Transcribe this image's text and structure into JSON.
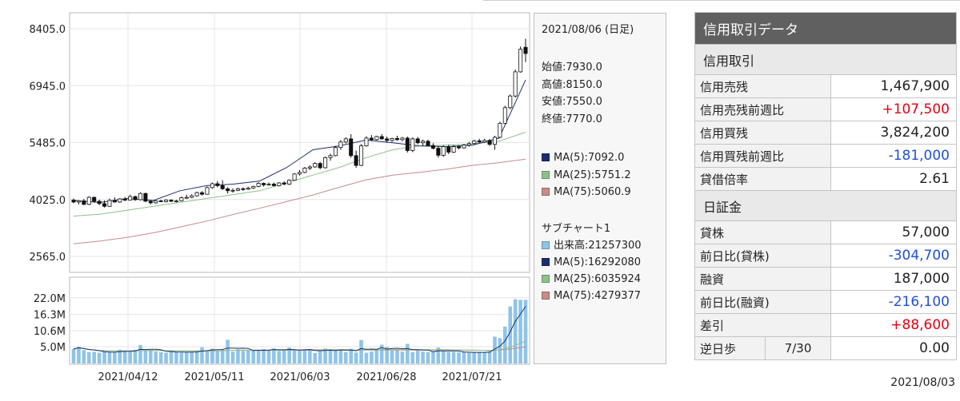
{
  "chart_data": {
    "type": "candlestick",
    "price_panel": {
      "y_ticks": [
        "8405.0",
        "6945.0",
        "5485.0",
        "4025.0",
        "2565.0"
      ],
      "ylim": [
        2565.0,
        8405.0
      ],
      "candles": [
        {
          "o": 4010,
          "h": 4050,
          "l": 3930,
          "c": 3960
        },
        {
          "o": 3960,
          "h": 4010,
          "l": 3900,
          "c": 3990
        },
        {
          "o": 3990,
          "h": 4040,
          "l": 3880,
          "c": 3900
        },
        {
          "o": 3900,
          "h": 4110,
          "l": 3880,
          "c": 4080
        },
        {
          "o": 4080,
          "h": 4100,
          "l": 3940,
          "c": 3980
        },
        {
          "o": 3980,
          "h": 4020,
          "l": 3880,
          "c": 3920
        },
        {
          "o": 3920,
          "h": 4000,
          "l": 3820,
          "c": 3850
        },
        {
          "o": 3850,
          "h": 4050,
          "l": 3840,
          "c": 4000
        },
        {
          "o": 4000,
          "h": 4080,
          "l": 3950,
          "c": 3960
        },
        {
          "o": 3960,
          "h": 4060,
          "l": 3940,
          "c": 4040
        },
        {
          "o": 4040,
          "h": 4090,
          "l": 3980,
          "c": 4010
        },
        {
          "o": 4010,
          "h": 4150,
          "l": 4000,
          "c": 4100
        },
        {
          "o": 4100,
          "h": 4120,
          "l": 3990,
          "c": 4020
        },
        {
          "o": 4020,
          "h": 4210,
          "l": 4000,
          "c": 4180
        },
        {
          "o": 4180,
          "h": 4200,
          "l": 3960,
          "c": 3980
        },
        {
          "o": 3980,
          "h": 4020,
          "l": 3900,
          "c": 3940
        },
        {
          "o": 3940,
          "h": 4010,
          "l": 3920,
          "c": 3990
        },
        {
          "o": 3990,
          "h": 4020,
          "l": 3960,
          "c": 3970
        },
        {
          "o": 3970,
          "h": 4030,
          "l": 3950,
          "c": 4010
        },
        {
          "o": 4010,
          "h": 4030,
          "l": 3960,
          "c": 3980
        },
        {
          "o": 3980,
          "h": 4020,
          "l": 3950,
          "c": 3990
        },
        {
          "o": 3990,
          "h": 4100,
          "l": 3980,
          "c": 4070
        },
        {
          "o": 4070,
          "h": 4150,
          "l": 4040,
          "c": 4080
        },
        {
          "o": 4080,
          "h": 4160,
          "l": 4060,
          "c": 4120
        },
        {
          "o": 4120,
          "h": 4230,
          "l": 4100,
          "c": 4200
        },
        {
          "o": 4200,
          "h": 4240,
          "l": 4130,
          "c": 4160
        },
        {
          "o": 4160,
          "h": 4360,
          "l": 4150,
          "c": 4330
        },
        {
          "o": 4330,
          "h": 4460,
          "l": 4300,
          "c": 4430
        },
        {
          "o": 4430,
          "h": 4500,
          "l": 4340,
          "c": 4380
        },
        {
          "o": 4380,
          "h": 4520,
          "l": 4270,
          "c": 4300
        },
        {
          "o": 4300,
          "h": 4340,
          "l": 4180,
          "c": 4250
        },
        {
          "o": 4250,
          "h": 4310,
          "l": 4200,
          "c": 4260
        },
        {
          "o": 4260,
          "h": 4330,
          "l": 4240,
          "c": 4300
        },
        {
          "o": 4300,
          "h": 4340,
          "l": 4250,
          "c": 4290
        },
        {
          "o": 4290,
          "h": 4350,
          "l": 4270,
          "c": 4320
        },
        {
          "o": 4320,
          "h": 4380,
          "l": 4300,
          "c": 4360
        },
        {
          "o": 4360,
          "h": 4470,
          "l": 4340,
          "c": 4440
        },
        {
          "o": 4440,
          "h": 4460,
          "l": 4360,
          "c": 4400
        },
        {
          "o": 4400,
          "h": 4460,
          "l": 4380,
          "c": 4420
        },
        {
          "o": 4420,
          "h": 4460,
          "l": 4360,
          "c": 4380
        },
        {
          "o": 4380,
          "h": 4470,
          "l": 4360,
          "c": 4450
        },
        {
          "o": 4450,
          "h": 4490,
          "l": 4390,
          "c": 4420
        },
        {
          "o": 4420,
          "h": 4540,
          "l": 4400,
          "c": 4520
        },
        {
          "o": 4520,
          "h": 4700,
          "l": 4500,
          "c": 4680
        },
        {
          "o": 4680,
          "h": 4780,
          "l": 4640,
          "c": 4720
        },
        {
          "o": 4720,
          "h": 4860,
          "l": 4700,
          "c": 4830
        },
        {
          "o": 4830,
          "h": 4900,
          "l": 4780,
          "c": 4860
        },
        {
          "o": 4860,
          "h": 4980,
          "l": 4840,
          "c": 4950
        },
        {
          "o": 4950,
          "h": 4990,
          "l": 4800,
          "c": 4840
        },
        {
          "o": 4840,
          "h": 5130,
          "l": 4820,
          "c": 5100
        },
        {
          "o": 5100,
          "h": 5200,
          "l": 5020,
          "c": 5150
        },
        {
          "o": 5150,
          "h": 5400,
          "l": 5130,
          "c": 5360
        },
        {
          "o": 5360,
          "h": 5550,
          "l": 5300,
          "c": 5500
        },
        {
          "o": 5500,
          "h": 5620,
          "l": 5460,
          "c": 5580
        },
        {
          "o": 5580,
          "h": 5700,
          "l": 5100,
          "c": 5150
        },
        {
          "o": 5150,
          "h": 5280,
          "l": 4840,
          "c": 4900
        },
        {
          "o": 4900,
          "h": 5450,
          "l": 4880,
          "c": 5400
        },
        {
          "o": 5400,
          "h": 5650,
          "l": 5380,
          "c": 5600
        },
        {
          "o": 5600,
          "h": 5680,
          "l": 5520,
          "c": 5560
        },
        {
          "o": 5560,
          "h": 5660,
          "l": 5540,
          "c": 5640
        },
        {
          "o": 5640,
          "h": 5700,
          "l": 5560,
          "c": 5580
        },
        {
          "o": 5580,
          "h": 5640,
          "l": 5480,
          "c": 5540
        },
        {
          "o": 5540,
          "h": 5610,
          "l": 5500,
          "c": 5590
        },
        {
          "o": 5590,
          "h": 5660,
          "l": 5530,
          "c": 5560
        },
        {
          "o": 5560,
          "h": 5630,
          "l": 5520,
          "c": 5600
        },
        {
          "o": 5600,
          "h": 5640,
          "l": 5230,
          "c": 5280
        },
        {
          "o": 5280,
          "h": 5620,
          "l": 5240,
          "c": 5580
        },
        {
          "o": 5580,
          "h": 5630,
          "l": 5440,
          "c": 5480
        },
        {
          "o": 5480,
          "h": 5560,
          "l": 5400,
          "c": 5520
        },
        {
          "o": 5520,
          "h": 5560,
          "l": 5390,
          "c": 5410
        },
        {
          "o": 5410,
          "h": 5470,
          "l": 5310,
          "c": 5340
        },
        {
          "o": 5340,
          "h": 5400,
          "l": 5100,
          "c": 5160
        },
        {
          "o": 5160,
          "h": 5420,
          "l": 5120,
          "c": 5380
        },
        {
          "o": 5380,
          "h": 5430,
          "l": 5190,
          "c": 5240
        },
        {
          "o": 5240,
          "h": 5420,
          "l": 5220,
          "c": 5380
        },
        {
          "o": 5380,
          "h": 5420,
          "l": 5310,
          "c": 5350
        },
        {
          "o": 5350,
          "h": 5450,
          "l": 5330,
          "c": 5420
        },
        {
          "o": 5420,
          "h": 5500,
          "l": 5380,
          "c": 5460
        },
        {
          "o": 5460,
          "h": 5560,
          "l": 5440,
          "c": 5530
        },
        {
          "o": 5530,
          "h": 5580,
          "l": 5480,
          "c": 5500
        },
        {
          "o": 5500,
          "h": 5580,
          "l": 5480,
          "c": 5540
        },
        {
          "o": 5540,
          "h": 5580,
          "l": 5400,
          "c": 5440
        },
        {
          "o": 5440,
          "h": 5660,
          "l": 5300,
          "c": 5620
        },
        {
          "o": 5620,
          "h": 6020,
          "l": 5600,
          "c": 5980
        },
        {
          "o": 5980,
          "h": 6430,
          "l": 5960,
          "c": 6380
        },
        {
          "o": 6380,
          "h": 6720,
          "l": 6340,
          "c": 6680
        },
        {
          "o": 6680,
          "h": 7360,
          "l": 6640,
          "c": 7300
        },
        {
          "o": 7300,
          "h": 7950,
          "l": 7280,
          "c": 7880
        },
        {
          "o": 7930,
          "h": 8150,
          "l": 7550,
          "c": 7770
        }
      ],
      "ma_lines": {
        "ma5": {
          "start": 3980,
          "points": [
            4000,
            3950,
            4050,
            4000,
            4250,
            4380,
            4420,
            4500,
            4840,
            5300,
            5400,
            5550,
            5480,
            5400,
            5380,
            5420,
            5600,
            7092
          ]
        },
        "ma25": {
          "points": [
            3600,
            3650,
            3750,
            3850,
            3950,
            4050,
            4150,
            4250,
            4450,
            4650,
            4850,
            5100,
            5300,
            5400,
            5420,
            5450,
            5520,
            5751.2
          ]
        },
        "ma75": {
          "points": [
            2890,
            2960,
            3050,
            3170,
            3320,
            3470,
            3640,
            3800,
            3970,
            4140,
            4340,
            4530,
            4650,
            4720,
            4800,
            4900,
            4970,
            5060.9
          ]
        }
      }
    },
    "volume_panel": {
      "y_ticks": [
        "22.0M",
        "16.3M",
        "10.6M",
        "5.0M"
      ],
      "ylim": [
        0,
        25000000
      ],
      "volumes": [
        4.2,
        5.0,
        3.8,
        3.1,
        3.2,
        2.9,
        3.2,
        3.1,
        3.0,
        4.0,
        3.5,
        3.3,
        3.9,
        5.6,
        3.7,
        3.9,
        3.3,
        3.1,
        2.9,
        3.4,
        3.2,
        2.9,
        3.0,
        3.1,
        3.6,
        4.8,
        3.6,
        4.3,
        3.4,
        4.0,
        7.4,
        3.3,
        4.1,
        3.5,
        3.6,
        3.9,
        3.6,
        4.2,
        3.9,
        4.4,
        3.5,
        3.6,
        4.7,
        3.8,
        3.6,
        3.9,
        4.2,
        2.8,
        3.3,
        4.4,
        4.2,
        3.6,
        3.9,
        3.1,
        4.3,
        3.0,
        7.3,
        2.9,
        3.3,
        4.1,
        5.7,
        4.9,
        3.6,
        3.9,
        3.3,
        6.0,
        3.1,
        3.6,
        3.3,
        3.1,
        3.2,
        4.7,
        3.4,
        3.2,
        3.2,
        3.0,
        3.1,
        2.9,
        3.0,
        3.1,
        3.0,
        3.4,
        8.5,
        8.0,
        12.0,
        19.0,
        21.5,
        21.3,
        21.3
      ]
    },
    "x_tick_labels": [
      "2021/04/12",
      "2021/05/11",
      "2021/06/03",
      "2021/06/28",
      "2021/07/21"
    ]
  },
  "legend": {
    "date": "2021/08/06 (日足)",
    "open": "始値:7930.0",
    "high": "高値:8150.0",
    "low": "安値:7550.0",
    "close": "終値:7770.0",
    "ma5": "MA(5):7092.0",
    "ma25": "MA(25):5751.2",
    "ma75": "MA(75):5060.9",
    "sub_title": "サブチャート1",
    "volume": "出来高:21257300",
    "vma5": "MA(5):16292080",
    "vma25": "MA(25):6035924",
    "vma75": "MA(75):4279377",
    "colors": {
      "ma5": "#1b2f6e",
      "ma25": "#8dc18a",
      "ma75": "#c98a8a",
      "volume": "#8fc4e8"
    }
  },
  "margin": {
    "title": "信用取引データ",
    "section1": "信用取引",
    "section2": "日証金",
    "rows1": [
      {
        "label": "信用売残",
        "value": "1,467,900",
        "tone": "normal"
      },
      {
        "label": "信用売残前週比",
        "value": "+107,500",
        "tone": "red"
      },
      {
        "label": "信用買残",
        "value": "3,824,200",
        "tone": "normal"
      },
      {
        "label": "信用買残前週比",
        "value": "-181,000",
        "tone": "blue"
      },
      {
        "label": "貸借倍率",
        "value": "2.61",
        "tone": "normal"
      }
    ],
    "rows2": [
      {
        "label": "貸株",
        "value": "57,000",
        "tone": "normal"
      },
      {
        "label": "前日比(貸株)",
        "value": "-304,700",
        "tone": "blue"
      },
      {
        "label": "融資",
        "value": "187,000",
        "tone": "normal"
      },
      {
        "label": "前日比(融資)",
        "value": "-216,100",
        "tone": "blue"
      },
      {
        "label": "差引",
        "value": "+88,600",
        "tone": "red"
      }
    ],
    "reverse_label": "逆日歩",
    "reverse_date": "7/30",
    "reverse_value": "0.00",
    "as_of": "2021/08/03"
  }
}
